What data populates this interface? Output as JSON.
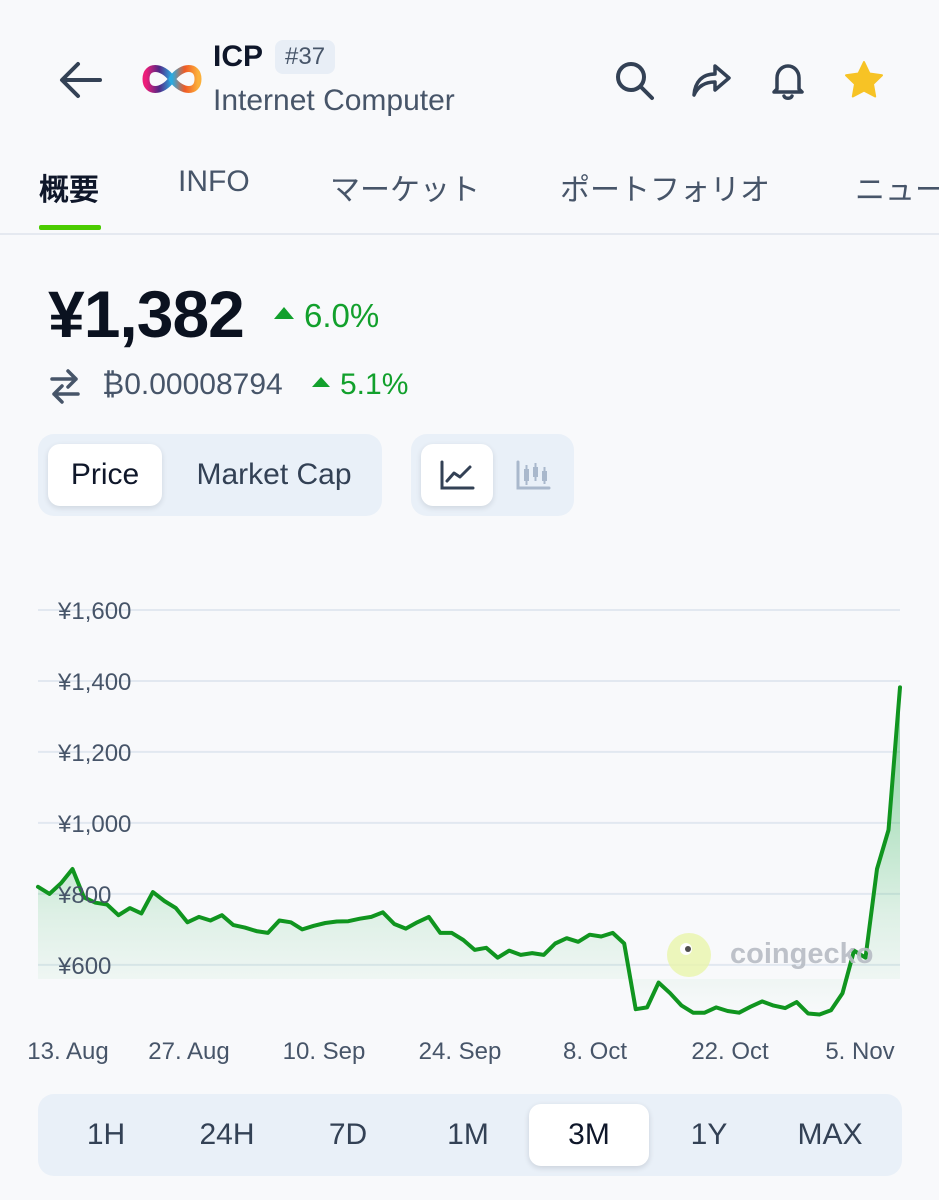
{
  "header": {
    "ticker": "ICP",
    "rank": "#37",
    "name": "Internet Computer",
    "icons": [
      "back-arrow-icon",
      "search-icon",
      "share-icon",
      "bell-icon",
      "star-icon"
    ],
    "star_color": "#f7c325"
  },
  "tabs": [
    {
      "label": "概要",
      "active": true
    },
    {
      "label": "INFO"
    },
    {
      "label": "マーケット"
    },
    {
      "label": "ポートフォリオ"
    },
    {
      "label": "ニュー"
    }
  ],
  "price": {
    "value": "¥1,382",
    "change": "6.0%",
    "btc_value": "₿0.00008794",
    "btc_change": "5.1%",
    "up_color": "#12a02c"
  },
  "toggles": {
    "price": "Price",
    "market_cap": "Market Cap",
    "line_icon": "line-chart-icon",
    "candle_icon": "candlestick-icon"
  },
  "ranges": [
    "1H",
    "24H",
    "7D",
    "1M",
    "3M",
    "1Y",
    "MAX"
  ],
  "selected_range": "3M",
  "chart_data": {
    "type": "area",
    "watermark": "coingecko",
    "y_ticks": [
      "¥1,600",
      "¥1,400",
      "¥1,200",
      "¥1,000",
      "¥800",
      "¥600"
    ],
    "x_ticks": [
      "13. Aug",
      "27. Aug",
      "10. Sep",
      "24. Sep",
      "8. Oct",
      "22. Oct",
      "5. Nov"
    ],
    "ylim": [
      360,
      1600
    ],
    "line_color": "#10951f",
    "series": [
      {
        "values": [
          820,
          800,
          830,
          870,
          790,
          775,
          770,
          740,
          760,
          745,
          805,
          780,
          760,
          720,
          735,
          725,
          740,
          712,
          705,
          695,
          690,
          725,
          720,
          700,
          710,
          718,
          722,
          723,
          730,
          735,
          748,
          715,
          702,
          720,
          735,
          690,
          690,
          670,
          642,
          648,
          620,
          640,
          628,
          633,
          628,
          660,
          675,
          665,
          685,
          680,
          690,
          660,
          475,
          480,
          550,
          520,
          485,
          465,
          465,
          480,
          470,
          465,
          482,
          497,
          485,
          478,
          495,
          463,
          460,
          472,
          520,
          640,
          620,
          870,
          980,
          1382
        ]
      }
    ]
  }
}
